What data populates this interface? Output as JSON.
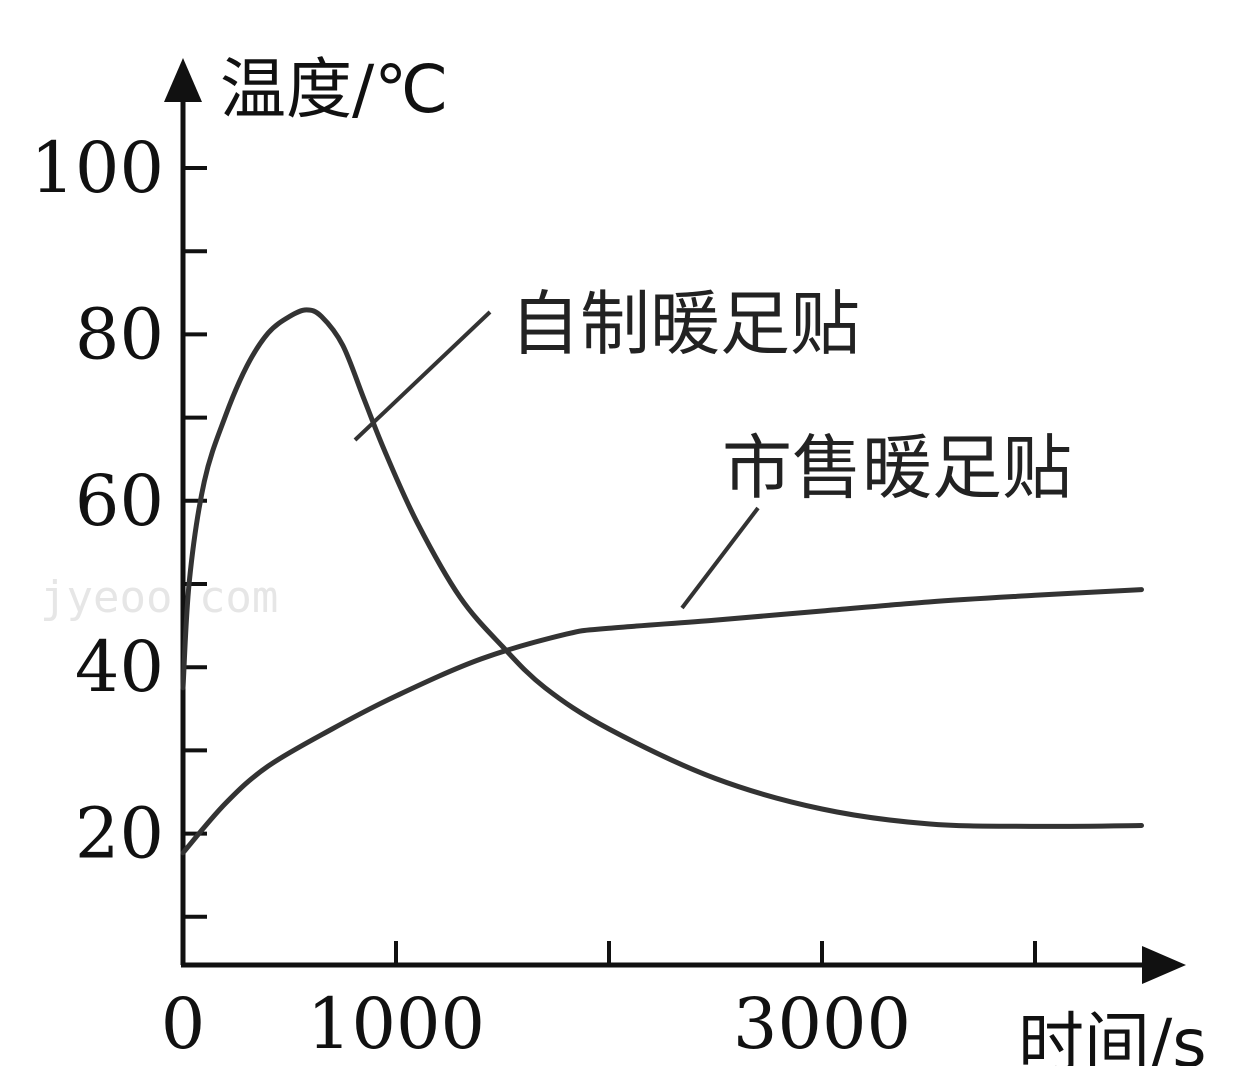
{
  "chart_data": {
    "type": "line",
    "xlabel": "时间/s",
    "ylabel": "温度/℃",
    "xlim": [
      0,
      5000
    ],
    "ylim": [
      0,
      100
    ],
    "x_ticks": [
      1000,
      2000,
      3000,
      4000
    ],
    "x_tick_labels": [
      {
        "value": 0,
        "label": "0"
      },
      {
        "value": 1000,
        "label": "1000"
      },
      {
        "value": 3000,
        "label": "3000"
      }
    ],
    "y_ticks": [
      10,
      20,
      30,
      40,
      50,
      60,
      70,
      80,
      90,
      100
    ],
    "y_tick_labels": [
      {
        "value": 20,
        "label": "20"
      },
      {
        "value": 40,
        "label": "40"
      },
      {
        "value": 60,
        "label": "60"
      },
      {
        "value": 80,
        "label": "80"
      },
      {
        "value": 100,
        "label": "100"
      }
    ],
    "grid": false,
    "watermark": "jyeoo.com",
    "series": [
      {
        "name": "自制暖足贴",
        "points": [
          [
            0,
            37
          ],
          [
            30,
            50
          ],
          [
            100,
            62
          ],
          [
            200,
            70
          ],
          [
            300,
            76
          ],
          [
            400,
            80
          ],
          [
            500,
            82
          ],
          [
            580,
            82.8
          ],
          [
            650,
            82
          ],
          [
            750,
            78.5
          ],
          [
            850,
            72
          ],
          [
            950,
            65.5
          ],
          [
            1100,
            57
          ],
          [
            1300,
            48
          ],
          [
            1500,
            42
          ],
          [
            1700,
            37
          ],
          [
            2000,
            32
          ],
          [
            2500,
            26
          ],
          [
            3000,
            22.3
          ],
          [
            3500,
            20.5
          ],
          [
            4000,
            20.2
          ],
          [
            4500,
            20.3
          ]
        ]
      },
      {
        "name": "市售暖足贴",
        "points": [
          [
            0,
            17
          ],
          [
            200,
            23
          ],
          [
            400,
            27.5
          ],
          [
            700,
            32
          ],
          [
            1000,
            36
          ],
          [
            1400,
            40.5
          ],
          [
            1800,
            43.5
          ],
          [
            2000,
            44.2
          ],
          [
            2500,
            45.2
          ],
          [
            3000,
            46.3
          ],
          [
            3500,
            47.4
          ],
          [
            4000,
            48.2
          ],
          [
            4500,
            48.9
          ]
        ]
      }
    ]
  }
}
